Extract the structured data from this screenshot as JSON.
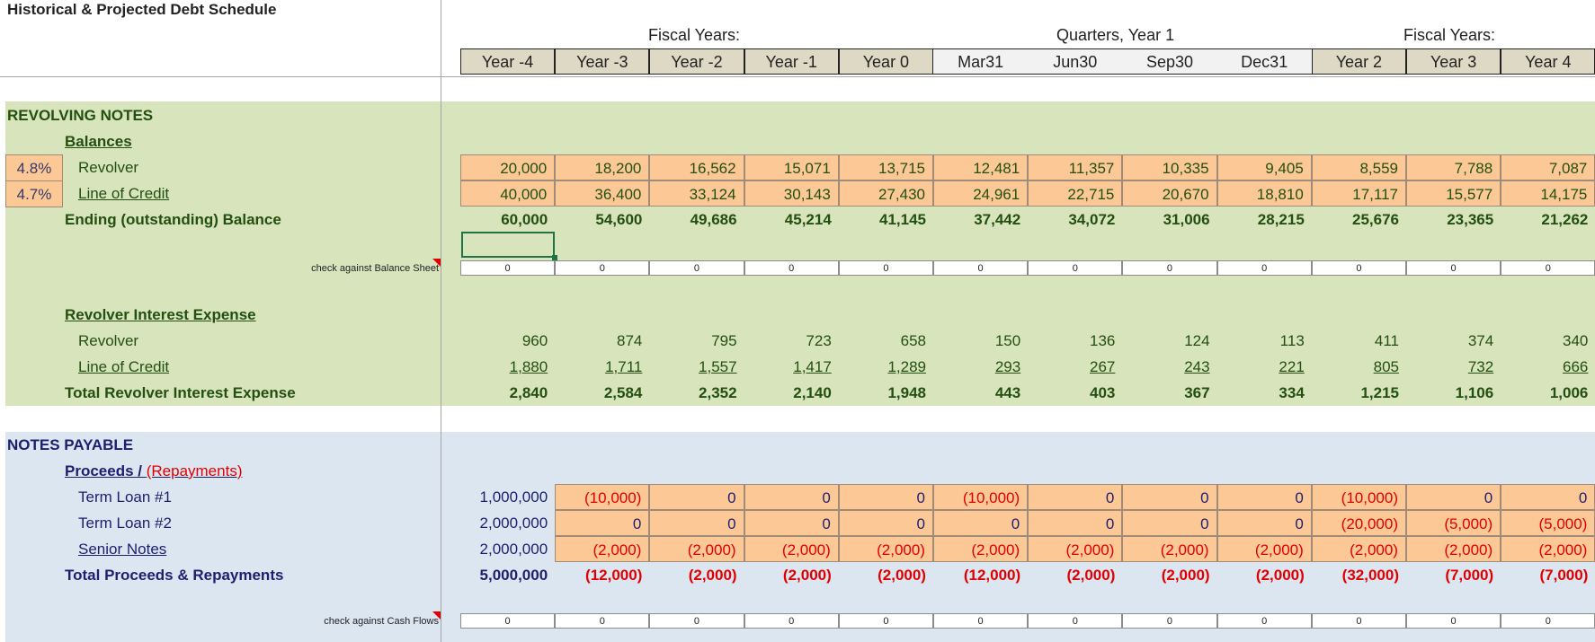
{
  "title": "Historical & Projected Debt Schedule",
  "group_labels": {
    "fiscal_left": "Fiscal Years:",
    "quarters": "Quarters, Year 1",
    "fiscal_right": "Fiscal Years:"
  },
  "columns": [
    "Year -4",
    "Year -3",
    "Year -2",
    "Year -1",
    "Year 0",
    "Mar31",
    "Jun30",
    "Sep30",
    "Dec31",
    "Year 2",
    "Year 3",
    "Year 4"
  ],
  "colors": {
    "green_band": "#d8e4bc",
    "blue_band": "#dce6f1",
    "input_orange": "#fcc896",
    "header_tan": "#ddd9c4",
    "negative_red": "#e00000"
  },
  "revolving": {
    "section": "REVOLVING NOTES",
    "balances_label": "Balances",
    "revolver": {
      "rate": "4.8%",
      "label": "Revolver",
      "values": [
        "20,000",
        "18,200",
        "16,562",
        "15,071",
        "13,715",
        "12,481",
        "11,357",
        "10,335",
        "9,405",
        "8,559",
        "7,788",
        "7,087"
      ]
    },
    "loc": {
      "rate": "4.7%",
      "label": "Line of Credit",
      "values": [
        "40,000",
        "36,400",
        "33,124",
        "30,143",
        "27,430",
        "24,961",
        "22,715",
        "20,670",
        "18,810",
        "17,117",
        "15,577",
        "14,175"
      ]
    },
    "ending": {
      "label": "Ending (outstanding) Balance",
      "values": [
        "60,000",
        "54,600",
        "49,686",
        "45,214",
        "41,145",
        "37,442",
        "34,072",
        "31,006",
        "28,215",
        "25,676",
        "23,365",
        "21,262"
      ]
    },
    "check": {
      "label": "check against Balance Sheet",
      "values": [
        "0",
        "0",
        "0",
        "0",
        "0",
        "0",
        "0",
        "0",
        "0",
        "0",
        "0",
        "0"
      ]
    },
    "interest_label": "Revolver Interest Expense",
    "int_revolver": {
      "label": "Revolver",
      "values": [
        "960",
        "874",
        "795",
        "723",
        "658",
        "150",
        "136",
        "124",
        "113",
        "411",
        "374",
        "340"
      ]
    },
    "int_loc": {
      "label": "Line of Credit",
      "values": [
        "1,880",
        "1,711",
        "1,557",
        "1,417",
        "1,289",
        "293",
        "267",
        "243",
        "221",
        "805",
        "732",
        "666"
      ]
    },
    "int_total": {
      "label": "Total Revolver Interest Expense",
      "values": [
        "2,840",
        "2,584",
        "2,352",
        "2,140",
        "1,948",
        "443",
        "403",
        "367",
        "334",
        "1,215",
        "1,106",
        "1,006"
      ]
    }
  },
  "notes": {
    "section": "NOTES PAYABLE",
    "proceeds_label": "Proceeds / ",
    "repayments_label": "(Repayments)",
    "tl1": {
      "label": "Term Loan #1",
      "values": [
        "1,000,000",
        "(10,000)",
        "0",
        "0",
        "0",
        "(10,000)",
        "0",
        "0",
        "0",
        "(10,000)",
        "0",
        "0"
      ]
    },
    "tl2": {
      "label": "Term Loan #2",
      "values": [
        "2,000,000",
        "0",
        "0",
        "0",
        "0",
        "0",
        "0",
        "0",
        "0",
        "(20,000)",
        "(5,000)",
        "(5,000)"
      ]
    },
    "senior": {
      "label": "Senior Notes",
      "values": [
        "2,000,000",
        "(2,000)",
        "(2,000)",
        "(2,000)",
        "(2,000)",
        "(2,000)",
        "(2,000)",
        "(2,000)",
        "(2,000)",
        "(2,000)",
        "(2,000)",
        "(2,000)"
      ]
    },
    "total": {
      "label": "Total Proceeds & Repayments",
      "values": [
        "5,000,000",
        "(12,000)",
        "(2,000)",
        "(2,000)",
        "(2,000)",
        "(12,000)",
        "(2,000)",
        "(2,000)",
        "(2,000)",
        "(32,000)",
        "(7,000)",
        "(7,000)"
      ]
    },
    "check": {
      "label": "check against Cash Flows",
      "values": [
        "0",
        "0",
        "0",
        "0",
        "0",
        "0",
        "0",
        "0",
        "0",
        "0",
        "0",
        "0"
      ]
    }
  }
}
